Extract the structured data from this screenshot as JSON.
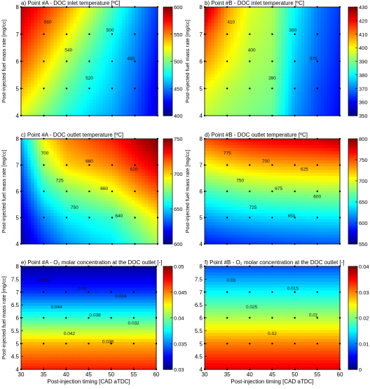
{
  "figure": {
    "shared_ylabel": "Post-injected fuel mass rate [mg/cc]",
    "shared_xlabel": "Post-injection timing [CAD aTDC]"
  },
  "chart_data": [
    {
      "id": "a",
      "type": "heatmap",
      "title": "a) Point #A  - DOC inlet temperature [ºC]",
      "xlabel": "",
      "ylabel": "Post-injected fuel mass rate [mg/cc]",
      "x": [
        30,
        35,
        40,
        45,
        50,
        55,
        60
      ],
      "y": [
        4,
        5,
        6,
        7,
        8
      ],
      "xlim": [
        30,
        60
      ],
      "ylim": [
        4,
        8
      ],
      "xticks": [],
      "yticks": [
        4,
        5,
        6,
        7,
        8
      ],
      "colorbar": {
        "min": 400,
        "max": 600,
        "ticks": [
          400,
          450,
          500,
          550,
          600
        ]
      },
      "contour_labels": [
        "560",
        "540",
        "520",
        "500",
        "480"
      ],
      "z": [
        [
          520,
          500,
          482,
          468,
          458,
          440,
          418
        ],
        [
          540,
          518,
          495,
          478,
          465,
          445,
          420
        ],
        [
          560,
          535,
          510,
          488,
          470,
          450,
          425
        ],
        [
          575,
          552,
          528,
          502,
          478,
          455,
          430
        ],
        [
          590,
          568,
          545,
          518,
          490,
          462,
          435
        ]
      ]
    },
    {
      "id": "b",
      "type": "heatmap",
      "title": "b) Point #B  - DOC inlet temperature [ºC]",
      "xlabel": "",
      "ylabel": "Post-injected fuel mass rate [mg/cc]",
      "x": [
        30,
        35,
        40,
        45,
        50,
        55,
        60
      ],
      "y": [
        4,
        5,
        6,
        7,
        8
      ],
      "xlim": [
        30,
        60
      ],
      "ylim": [
        4,
        8
      ],
      "xticks": [],
      "yticks": [
        4,
        5,
        6,
        7,
        8
      ],
      "colorbar": {
        "min": 350,
        "max": 430,
        "ticks": [
          350,
          360,
          370,
          380,
          390,
          400,
          410,
          420,
          430
        ]
      },
      "contour_labels": [
        "410",
        "400",
        "390",
        "380",
        "370"
      ],
      "z": [
        [
          395,
          392,
          390,
          388,
          372,
          365,
          360
        ],
        [
          400,
          395,
          392,
          390,
          374,
          366,
          361
        ],
        [
          408,
          400,
          394,
          392,
          376,
          368,
          362
        ],
        [
          415,
          404,
          396,
          393,
          378,
          369,
          363
        ],
        [
          428,
          408,
          398,
          394,
          380,
          370,
          364
        ]
      ]
    },
    {
      "id": "c",
      "type": "heatmap",
      "title": "c) Point #A - DOC outlet temperature [ºC]",
      "xlabel": "",
      "ylabel": "Post-injected fuel mass rate [mg/cc]",
      "x": [
        30,
        35,
        40,
        45,
        50,
        55,
        60
      ],
      "y": [
        4,
        5,
        6,
        7,
        8
      ],
      "xlim": [
        30,
        60
      ],
      "ylim": [
        4,
        8
      ],
      "xticks": [],
      "yticks": [
        4,
        5,
        6,
        7,
        8
      ],
      "colorbar": {
        "min": 600,
        "max": 750,
        "ticks": [
          600,
          650,
          700,
          750
        ]
      },
      "contour_labels": [
        "700",
        "725",
        "750",
        "680",
        "660",
        "640",
        "620"
      ],
      "z": [
        [
          605,
          625,
          640,
          648,
          652,
          665,
          680
        ],
        [
          612,
          640,
          655,
          660,
          665,
          680,
          695
        ],
        [
          622,
          660,
          675,
          682,
          690,
          705,
          718
        ],
        [
          632,
          680,
          700,
          706,
          712,
          725,
          738
        ],
        [
          645,
          695,
          712,
          720,
          728,
          740,
          752
        ]
      ]
    },
    {
      "id": "d",
      "type": "heatmap",
      "title": "d) Point #B - DOC outlet temperature  [ºC]",
      "xlabel": "",
      "ylabel": "Post-injected fuel mass rate [mg/cc]",
      "x": [
        30,
        35,
        40,
        45,
        50,
        55,
        60
      ],
      "y": [
        4,
        5,
        6,
        7,
        8
      ],
      "xlim": [
        30,
        60
      ],
      "ylim": [
        4,
        8
      ],
      "xticks": [],
      "yticks": [
        4,
        5,
        6,
        7,
        8
      ],
      "colorbar": {
        "min": 550,
        "max": 800,
        "ticks": [
          550,
          600,
          650,
          700,
          750,
          800
        ]
      },
      "contour_labels": [
        "775",
        "750",
        "725",
        "700",
        "675",
        "650",
        "625",
        "600"
      ],
      "z": [
        [
          585,
          590,
          595,
          598,
          600,
          602,
          603
        ],
        [
          620,
          628,
          633,
          636,
          638,
          640,
          641
        ],
        [
          660,
          668,
          675,
          678,
          680,
          682,
          683
        ],
        [
          705,
          715,
          722,
          726,
          728,
          730,
          731
        ],
        [
          750,
          762,
          770,
          775,
          778,
          782,
          790
        ]
      ]
    },
    {
      "id": "e",
      "type": "heatmap",
      "title": "e) Point #A - O₂ molar concentration at the DOC outlet [-]",
      "xlabel": "Post-injection timing [CAD aTDC]",
      "ylabel": "Post-injected fuel mass rate [mg/cc]",
      "x": [
        30,
        35,
        40,
        45,
        50,
        55,
        60
      ],
      "y": [
        4,
        5,
        6,
        7,
        8
      ],
      "xlim": [
        30,
        60
      ],
      "ylim": [
        4,
        8
      ],
      "xticks": [
        30,
        35,
        40,
        45,
        50,
        55,
        60
      ],
      "yticks": [
        4,
        4.5,
        5,
        5.5,
        6,
        6.5,
        7,
        7.5,
        8
      ],
      "colorbar": {
        "min": 0.03,
        "max": 0.05,
        "ticks": [
          0.03,
          0.035,
          0.04,
          0.045,
          0.05
        ]
      },
      "contour_labels": [
        "0.046",
        "0.044",
        "0.042",
        "0.04",
        "0.038",
        "0.036",
        "0.034",
        "0.032"
      ],
      "z": [
        [
          0.047,
          0.047,
          0.047,
          0.047,
          0.047,
          0.047,
          0.047
        ],
        [
          0.044,
          0.044,
          0.044,
          0.044,
          0.044,
          0.044,
          0.044
        ],
        [
          0.0385,
          0.0385,
          0.0385,
          0.0385,
          0.0385,
          0.0385,
          0.0385
        ],
        [
          0.0335,
          0.0335,
          0.0335,
          0.0335,
          0.0335,
          0.0335,
          0.0335
        ],
        [
          0.0305,
          0.0305,
          0.0305,
          0.0305,
          0.0305,
          0.0305,
          0.0305
        ]
      ]
    },
    {
      "id": "f",
      "type": "heatmap",
      "title": "f) Point #B - O₂ molar concentration at the DOC outlet [-]",
      "xlabel": "Post-injection timing [CAD aTDC]",
      "ylabel": "",
      "x": [
        30,
        35,
        40,
        45,
        50,
        55,
        60
      ],
      "y": [
        4,
        5,
        6,
        7,
        8
      ],
      "xlim": [
        30,
        60
      ],
      "ylim": [
        4,
        8
      ],
      "xticks": [
        30,
        35,
        40,
        45,
        50,
        55,
        60
      ],
      "yticks": [
        4,
        4.5,
        5,
        5.5,
        6,
        6.5,
        7,
        7.5,
        8
      ],
      "colorbar": {
        "min": 0,
        "max": 0.04,
        "ticks": [
          0,
          0.01,
          0.02,
          0.03,
          0.04
        ]
      },
      "contour_labels": [
        "0.03",
        "0.025",
        "0.02",
        "0.015",
        "0.01"
      ],
      "z": [
        [
          0.036,
          0.036,
          0.036,
          0.036,
          0.036,
          0.036,
          0.036
        ],
        [
          0.03,
          0.03,
          0.03,
          0.03,
          0.03,
          0.03,
          0.03
        ],
        [
          0.022,
          0.022,
          0.022,
          0.022,
          0.022,
          0.022,
          0.022
        ],
        [
          0.015,
          0.015,
          0.015,
          0.015,
          0.015,
          0.015,
          0.015
        ],
        [
          0.008,
          0.008,
          0.008,
          0.008,
          0.008,
          0.008,
          0.008
        ]
      ]
    }
  ]
}
